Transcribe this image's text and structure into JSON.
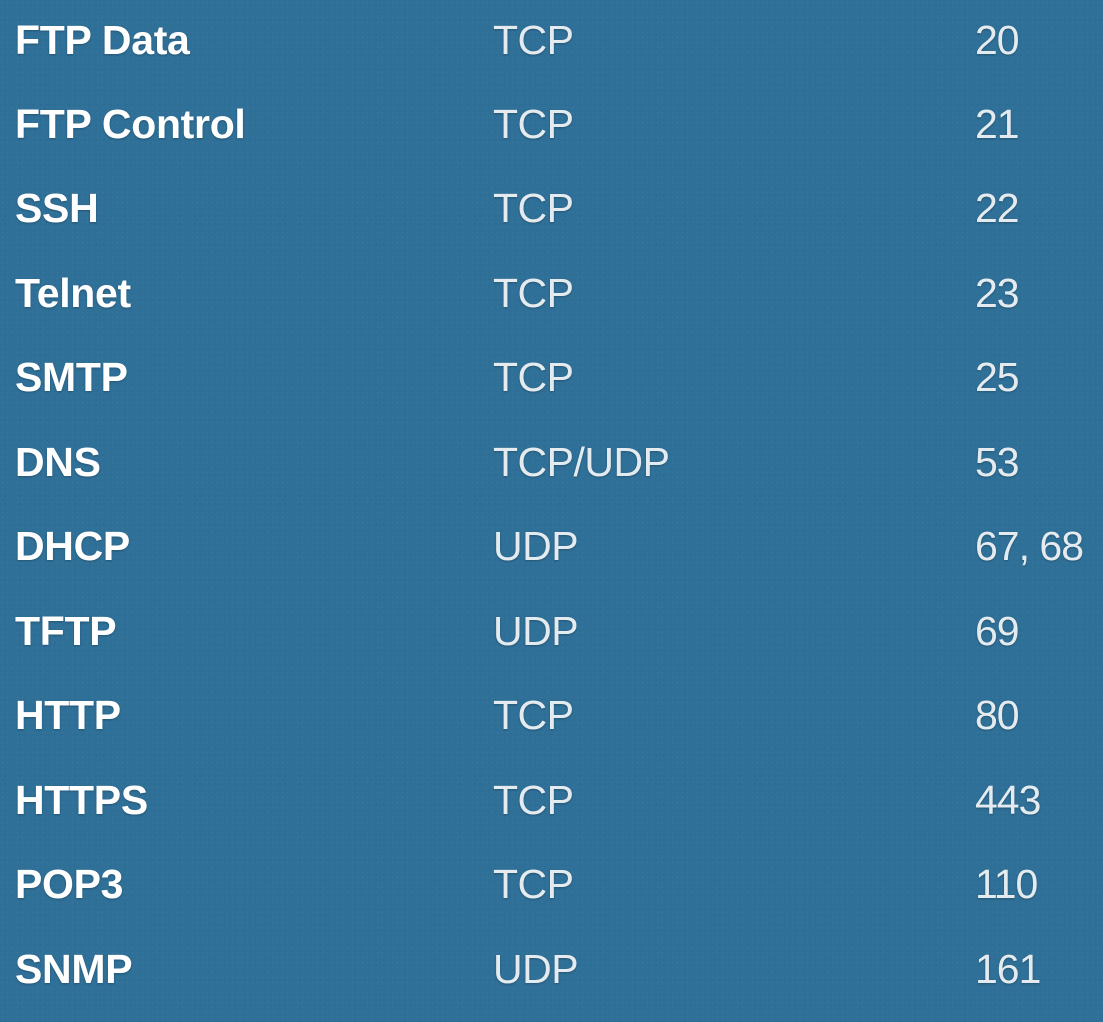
{
  "rows": [
    {
      "service": "FTP Data",
      "protocol": "TCP",
      "port": "20"
    },
    {
      "service": "FTP Control",
      "protocol": "TCP",
      "port": "21"
    },
    {
      "service": "SSH",
      "protocol": "TCP",
      "port": "22"
    },
    {
      "service": "Telnet",
      "protocol": "TCP",
      "port": "23"
    },
    {
      "service": "SMTP",
      "protocol": "TCP",
      "port": "25"
    },
    {
      "service": "DNS",
      "protocol": "TCP/UDP",
      "port": "53"
    },
    {
      "service": "DHCP",
      "protocol": "UDP",
      "port": "67, 68"
    },
    {
      "service": "TFTP",
      "protocol": "UDP",
      "port": "69"
    },
    {
      "service": "HTTP",
      "protocol": "TCP",
      "port": "80"
    },
    {
      "service": "HTTPS",
      "protocol": "TCP",
      "port": "443"
    },
    {
      "service": "POP3",
      "protocol": "TCP",
      "port": "110"
    },
    {
      "service": "SNMP",
      "protocol": "UDP",
      "port": "161"
    }
  ],
  "colors": {
    "background": "#2f7098",
    "text": "#ffffff"
  }
}
